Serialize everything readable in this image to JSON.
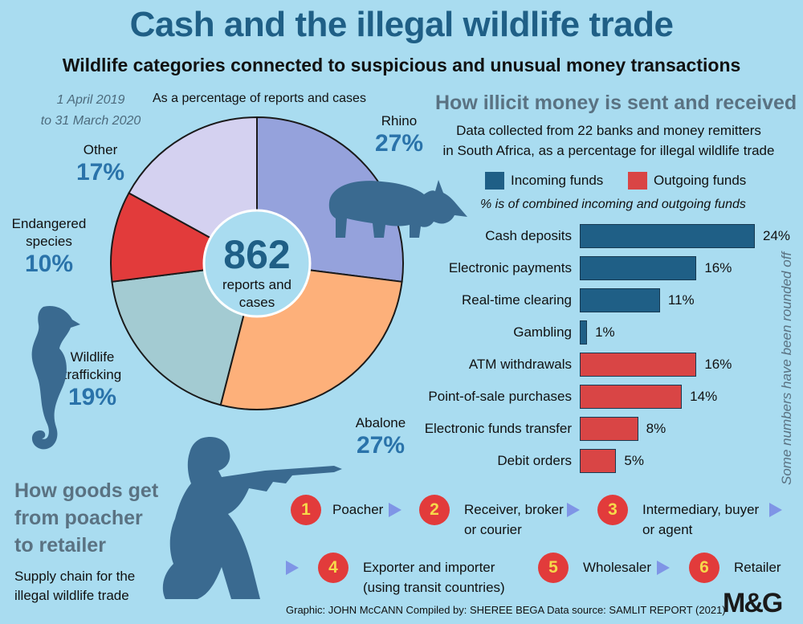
{
  "title": "Cash and the illegal wildlife trade",
  "subtitle": "Wildlife categories connected to suspicious and unusual money transactions",
  "date_range_line1": "1 April 2019",
  "date_range_line2": "to 31 March 2020",
  "pie_caption": "As a percentage of reports and cases",
  "pie_center": {
    "number": "862",
    "line1": "reports and",
    "line2": "cases"
  },
  "bar_section": {
    "heading": "How illicit money is sent and received",
    "sub_line1": "Data collected from 22 banks and money remitters",
    "sub_line2": "in South Africa, as a percentage for illegal wildlife trade",
    "legend_incoming": "Incoming funds",
    "legend_outgoing": "Outgoing funds",
    "note": "% is of combined incoming and outgoing funds",
    "rounding_note": "Some numbers have been rounded off"
  },
  "supply_chain": {
    "heading_line1": "How goods get",
    "heading_line2": "from poacher",
    "heading_line3": "to retailer",
    "sub_line1": "Supply chain for the",
    "sub_line2": "illegal wildlife trade",
    "steps": [
      {
        "num": "1",
        "line1": "Poacher",
        "line2": ""
      },
      {
        "num": "2",
        "line1": "Receiver, broker",
        "line2": "or courier"
      },
      {
        "num": "3",
        "line1": "Intermediary, buyer",
        "line2": "or agent"
      },
      {
        "num": "4",
        "line1": "Exporter and importer",
        "line2": "(using transit countries)"
      },
      {
        "num": "5",
        "line1": "Wholesaler",
        "line2": ""
      },
      {
        "num": "6",
        "line1": "Retailer",
        "line2": ""
      }
    ]
  },
  "footer": "Graphic: JOHN McCANN  Compiled by: SHEREE BEGA  Data source: SAMLIT REPORT (2021)",
  "logo": "M&G",
  "colors": {
    "incoming": "#1f5f86",
    "outgoing": "#d94545",
    "accent": "#2a73aa",
    "step_circle": "#e23b3b"
  },
  "icons": [
    "rhino-icon",
    "seahorse-icon",
    "poacher-silhouette-icon"
  ],
  "chart_data": [
    {
      "type": "pie",
      "slices": [
        {
          "name": "Rhino",
          "label_lines": [
            "Rhino"
          ],
          "value": 27,
          "value_label": "27%",
          "color": "#95a2dc"
        },
        {
          "name": "Abalone",
          "label_lines": [
            "Abalone"
          ],
          "value": 27,
          "value_label": "27%",
          "color": "#fdb07a"
        },
        {
          "name": "Wildlife trafficking",
          "label_lines": [
            "Wildlife",
            "trafficking"
          ],
          "value": 19,
          "value_label": "19%",
          "color": "#a3cbd2"
        },
        {
          "name": "Endangered species",
          "label_lines": [
            "Endangered",
            "species"
          ],
          "value": 10,
          "value_label": "10%",
          "color": "#e23b3b"
        },
        {
          "name": "Other",
          "label_lines": [
            "Other"
          ],
          "value": 17,
          "value_label": "17%",
          "color": "#d4d1f0"
        }
      ]
    },
    {
      "type": "bar",
      "orientation": "horizontal",
      "categories": [
        "Cash deposits",
        "Electronic payments",
        "Real-time clearing",
        "Gambling",
        "ATM withdrawals",
        "Point-of-sale purchases",
        "Electronic funds transfer",
        "Debit orders"
      ],
      "values": [
        24,
        16,
        11,
        1,
        16,
        14,
        8,
        5
      ],
      "value_labels": [
        "24%",
        "16%",
        "11%",
        "1%",
        "16%",
        "14%",
        "8%",
        "5%"
      ],
      "groups": [
        "incoming",
        "incoming",
        "incoming",
        "incoming",
        "outgoing",
        "outgoing",
        "outgoing",
        "outgoing"
      ],
      "series": [
        {
          "name": "Incoming funds"
        },
        {
          "name": "Outgoing funds"
        }
      ]
    }
  ]
}
